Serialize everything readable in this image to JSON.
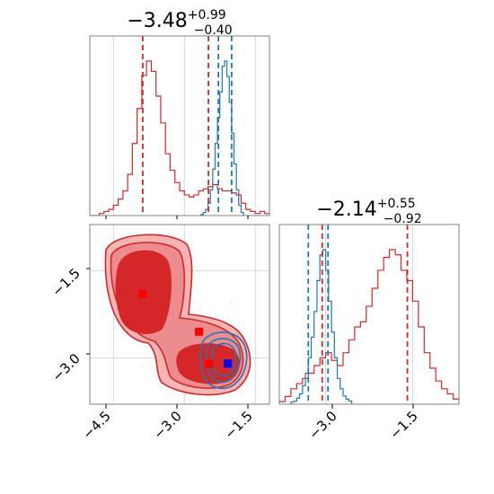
{
  "chart_data": [
    {
      "type": "histogram",
      "panel": "top-left",
      "title": {
        "main": "−3.48",
        "sup": "+0.99",
        "sub": "−0.40"
      },
      "xlim": [
        -5.0,
        -1.2
      ],
      "grid": true,
      "series": [
        {
          "color": "#d62728",
          "bin_edges": [
            -5.0,
            -4.9,
            -4.8,
            -4.7,
            -4.6,
            -4.5,
            -4.4,
            -4.3,
            -4.2,
            -4.1,
            -4.0,
            -3.9,
            -3.8,
            -3.7,
            -3.6,
            -3.5,
            -3.4,
            -3.3,
            -3.2,
            -3.1,
            -3.0,
            -2.9,
            -2.8,
            -2.7,
            -2.6,
            -2.5,
            -2.4,
            -2.3,
            -2.2,
            -2.1,
            -2.0,
            -1.9,
            -1.8,
            -1.7,
            -1.6,
            -1.5,
            -1.4,
            -1.3,
            -1.2
          ],
          "counts": [
            0,
            0,
            1,
            2,
            3,
            5,
            8,
            12,
            20,
            35,
            52,
            68,
            75,
            70,
            58,
            45,
            30,
            22,
            16,
            12,
            10,
            9,
            10,
            12,
            13,
            14,
            15,
            13,
            12,
            12,
            11,
            10,
            6,
            3,
            2,
            1,
            2,
            1
          ],
          "quantiles": [
            -3.88,
            -2.49
          ]
        },
        {
          "color": "#1f77b4",
          "bin_edges": [
            -2.65,
            -2.6,
            -2.55,
            -2.5,
            -2.45,
            -2.4,
            -2.35,
            -2.3,
            -2.25,
            -2.2,
            -2.15,
            -2.1,
            -2.05,
            -2.0,
            -1.95,
            -1.9,
            -1.85,
            -1.8,
            -1.75
          ],
          "counts": [
            1,
            3,
            6,
            12,
            25,
            45,
            70,
            95,
            120,
            145,
            150,
            135,
            110,
            80,
            50,
            25,
            10,
            3
          ],
          "quantiles": [
            -2.28,
            -2.0
          ]
        }
      ]
    },
    {
      "type": "histogram",
      "panel": "bottom-right",
      "title": {
        "main": "−2.14",
        "sup": "+0.55",
        "sub": "−0.92"
      },
      "xlim": [
        -3.8,
        -0.7
      ],
      "xticks": [
        "−3.0",
        "−1.5"
      ],
      "grid": true,
      "series": [
        {
          "color": "#d62728",
          "bin_edges": [
            -3.8,
            -3.7,
            -3.6,
            -3.5,
            -3.4,
            -3.3,
            -3.2,
            -3.1,
            -3.0,
            -2.9,
            -2.8,
            -2.7,
            -2.6,
            -2.5,
            -2.4,
            -2.3,
            -2.2,
            -2.1,
            -2.0,
            -1.9,
            -1.8,
            -1.7,
            -1.6,
            -1.5,
            -1.4,
            -1.3,
            -1.2,
            -1.1,
            -1.0,
            -0.9,
            -0.8,
            -0.7
          ],
          "counts": [
            1,
            3,
            6,
            8,
            10,
            12,
            15,
            18,
            20,
            17,
            15,
            20,
            25,
            30,
            32,
            38,
            45,
            52,
            57,
            60,
            58,
            52,
            48,
            40,
            30,
            20,
            14,
            9,
            6,
            4,
            2
          ],
          "quantiles": [
            -3.06,
            -1.59
          ]
        },
        {
          "color": "#1f77b4",
          "bin_edges": [
            -3.6,
            -3.55,
            -3.5,
            -3.45,
            -3.4,
            -3.35,
            -3.3,
            -3.25,
            -3.2,
            -3.15,
            -3.1,
            -3.05,
            -3.0,
            -2.95,
            -2.9,
            -2.85,
            -2.8,
            -2.75,
            -2.7,
            -2.65,
            -2.6,
            -2.55
          ],
          "counts": [
            2,
            3,
            6,
            10,
            18,
            30,
            45,
            65,
            90,
            120,
            145,
            150,
            130,
            100,
            70,
            45,
            25,
            15,
            8,
            5,
            3
          ],
          "quantiles": [
            -3.3,
            -2.96
          ]
        }
      ]
    },
    {
      "type": "contour",
      "panel": "bottom-left",
      "xlim": [
        -5.0,
        -1.2
      ],
      "ylim": [
        -3.8,
        -0.7
      ],
      "xticks": [
        "−4.5",
        "−3.0",
        "−1.5"
      ],
      "yticks": [
        "−1.5",
        "−3.0"
      ],
      "grid": true,
      "series": [
        {
          "color": "#d62728",
          "markers": [
            {
              "x": -3.88,
              "y": -1.9
            },
            {
              "x": -2.69,
              "y": -2.55
            },
            {
              "x": -2.47,
              "y": -3.1
            }
          ]
        },
        {
          "color": "#1f77b4",
          "markers": [
            {
              "x": -2.08,
              "y": -3.1
            }
          ]
        }
      ]
    }
  ]
}
